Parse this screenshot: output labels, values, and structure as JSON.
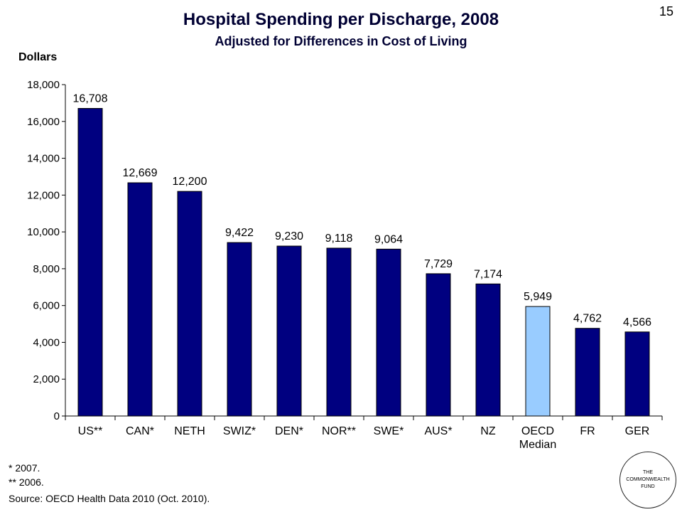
{
  "slide_number": "15",
  "footnotes": [
    "* 2007.",
    "** 2006.",
    "Source: OECD Health Data 2010 (Oct. 2010)."
  ],
  "logo": {
    "line1": "THE",
    "line2": "COMMONWEALTH",
    "line3": "FUND"
  },
  "colors": {
    "bar": "#000080",
    "highlight": "#99ccff"
  },
  "chart_data": {
    "type": "bar",
    "title": "Hospital Spending per Discharge, 2008",
    "subtitle": "Adjusted for Differences in Cost of Living",
    "ylabel": "Dollars",
    "xlabel": "",
    "ylim": [
      0,
      18000
    ],
    "yticks": [
      "0",
      "2,000",
      "4,000",
      "6,000",
      "8,000",
      "10,000",
      "12,000",
      "14,000",
      "16,000",
      "18,000"
    ],
    "categories": [
      "US**",
      "CAN*",
      "NETH",
      "SWIZ*",
      "DEN*",
      "NOR**",
      "SWE*",
      "AUS*",
      "NZ",
      "OECD\nMedian",
      "FR",
      "GER"
    ],
    "values": [
      16708,
      12669,
      12200,
      9422,
      9230,
      9118,
      9064,
      7729,
      7174,
      5949,
      4762,
      4566
    ],
    "data_labels": [
      "16,708",
      "12,669",
      "12,200",
      "9,422",
      "9,230",
      "9,118",
      "9,064",
      "7,729",
      "7,174",
      "5,949",
      "4,762",
      "4,566"
    ],
    "highlight_index": 9,
    "grid": false,
    "legend": "none"
  }
}
